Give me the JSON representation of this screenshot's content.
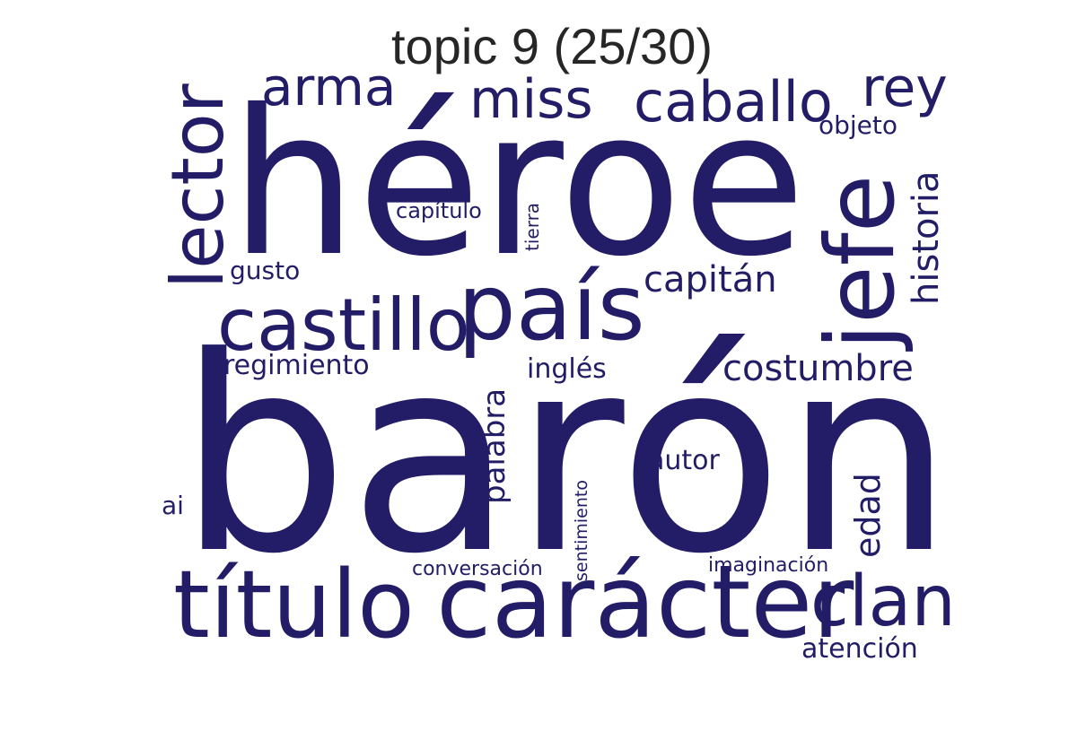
{
  "title": "topic 9 (25/30)",
  "word_color": "#221d66",
  "title_color": "#262626",
  "words": [
    {
      "text": "barón",
      "weight": 1.0
    },
    {
      "text": "héroe",
      "weight": 0.78
    },
    {
      "text": "carácter",
      "weight": 0.36
    },
    {
      "text": "título",
      "weight": 0.33
    },
    {
      "text": "país",
      "weight": 0.33
    },
    {
      "text": "jefe",
      "weight": 0.33
    },
    {
      "text": "lector",
      "weight": 0.26
    },
    {
      "text": "castillo",
      "weight": 0.25
    },
    {
      "text": "clan",
      "weight": 0.25
    },
    {
      "text": "caballo",
      "weight": 0.2
    },
    {
      "text": "miss",
      "weight": 0.19
    },
    {
      "text": "arma",
      "weight": 0.18
    },
    {
      "text": "rey",
      "weight": 0.18
    },
    {
      "text": "costumbre",
      "weight": 0.13
    },
    {
      "text": "historia",
      "weight": 0.13
    },
    {
      "text": "capitán",
      "weight": 0.13
    },
    {
      "text": "palabra",
      "weight": 0.11
    },
    {
      "text": "edad",
      "weight": 0.11
    },
    {
      "text": "regimiento",
      "weight": 0.1
    },
    {
      "text": "inglés",
      "weight": 0.1
    },
    {
      "text": "autor",
      "weight": 0.1
    },
    {
      "text": "atención",
      "weight": 0.1
    },
    {
      "text": "objeto",
      "weight": 0.09
    },
    {
      "text": "gusto",
      "weight": 0.09
    },
    {
      "text": "ai",
      "weight": 0.08
    },
    {
      "text": "capítulo",
      "weight": 0.08
    },
    {
      "text": "imaginación",
      "weight": 0.08
    },
    {
      "text": "conversación",
      "weight": 0.08
    },
    {
      "text": "tierra",
      "weight": 0.07
    },
    {
      "text": "sentimiento",
      "weight": 0.07
    }
  ]
}
